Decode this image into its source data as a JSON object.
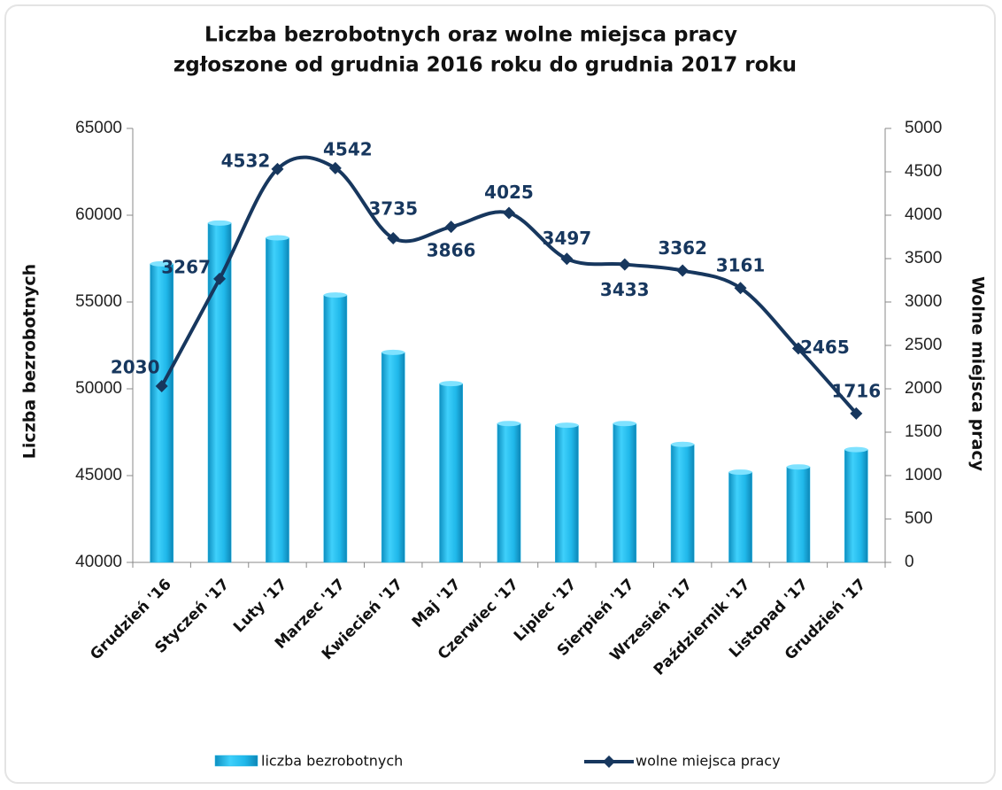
{
  "chart_data": {
    "type": "bar_line",
    "title": "Liczba bezrobotnych oraz wolne miejsca pracy",
    "subtitle": "zgłoszone od grudnia 2016 roku do grudnia 2017 roku",
    "y_label": "Liczba bezrobotnych",
    "y2_label": "Wolne miejsca pracy",
    "categories": [
      "Grudzień '16",
      "Styczeń '17",
      "Luty '17",
      "Marzec '17",
      "Kwiecień '17",
      "Maj '17",
      "Czerwiec '17",
      "Lipiec '17",
      "Sierpień '17",
      "Wrzesień '17",
      "Październik '17",
      "Listopad '17",
      "Grudzień '17"
    ],
    "series": [
      {
        "name": "liczba bezrobotnych",
        "type": "bar",
        "color": "#1fb4e6",
        "values": [
          57200,
          59550,
          58700,
          55400,
          52100,
          50300,
          48000,
          47900,
          48000,
          46800,
          45200,
          45500,
          46500
        ]
      },
      {
        "name": "wolne miejsca pracy",
        "type": "line",
        "axis": "y2",
        "color": "#17375e",
        "values": [
          2030,
          3267,
          4532,
          4542,
          3735,
          3866,
          4025,
          3497,
          3433,
          3362,
          3161,
          2465,
          1716
        ]
      }
    ],
    "ylim": [
      40000,
      65000
    ],
    "yticks": [
      40000,
      45000,
      50000,
      55000,
      60000,
      65000
    ],
    "y2lim": [
      0,
      5000
    ],
    "y2ticks": [
      0,
      500,
      1000,
      1500,
      2000,
      2500,
      3000,
      3500,
      4000,
      4500,
      5000
    ],
    "grid": false,
    "legend": "bottom"
  }
}
